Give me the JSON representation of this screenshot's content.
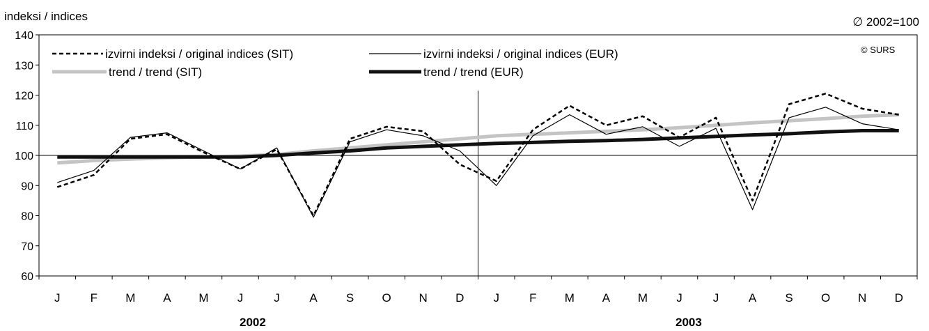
{
  "chart_data": {
    "type": "line",
    "title": "",
    "ylabel": "indeksi / indices",
    "base_note": "∅ 2002=100",
    "copyright": "© SURS",
    "ylim": [
      60,
      140
    ],
    "yticks": [
      60,
      70,
      80,
      90,
      100,
      110,
      120,
      130,
      140
    ],
    "reference_line": 100,
    "categories": [
      "J",
      "F",
      "M",
      "A",
      "M",
      "J",
      "J",
      "A",
      "S",
      "O",
      "N",
      "D",
      "J",
      "F",
      "M",
      "A",
      "M",
      "J",
      "J",
      "A",
      "S",
      "O",
      "N",
      "D"
    ],
    "years": [
      "2002",
      "2003"
    ],
    "series": [
      {
        "name": "izvirni indeksi / original indices (SIT)",
        "style": "dashed",
        "values": [
          89.5,
          93.5,
          105.5,
          107.0,
          101.0,
          95.5,
          102.0,
          80.0,
          105.5,
          109.5,
          108.0,
          97.0,
          91.5,
          108.5,
          116.5,
          110.0,
          113.0,
          106.0,
          112.5,
          85.0,
          117.0,
          120.5,
          115.5,
          113.5
        ]
      },
      {
        "name": "izvirni indeksi / original indices (EUR)",
        "style": "thin",
        "values": [
          91.0,
          95.0,
          106.0,
          107.5,
          101.5,
          95.5,
          102.5,
          79.5,
          104.5,
          108.5,
          106.5,
          101.5,
          90.0,
          106.5,
          113.5,
          107.0,
          109.5,
          103.0,
          109.0,
          82.0,
          112.5,
          116.0,
          110.5,
          108.5
        ]
      },
      {
        "name": "trend / trend (SIT)",
        "style": "thick-grey",
        "values": [
          97.5,
          98.3,
          98.8,
          99.2,
          99.5,
          99.8,
          100.3,
          101.5,
          102.5,
          103.5,
          104.5,
          105.5,
          106.5,
          107.0,
          107.5,
          108.0,
          108.5,
          109.2,
          110.0,
          110.8,
          111.5,
          112.2,
          113.0,
          113.5
        ]
      },
      {
        "name": "trend / trend (EUR)",
        "style": "thick-black",
        "values": [
          99.5,
          99.5,
          99.5,
          99.5,
          99.5,
          99.5,
          100.0,
          100.8,
          101.5,
          102.5,
          103.0,
          103.5,
          104.0,
          104.3,
          104.7,
          104.9,
          105.3,
          105.8,
          106.3,
          106.8,
          107.2,
          107.8,
          108.2,
          108.2
        ]
      }
    ],
    "grid": false,
    "legend_position": "top-left"
  }
}
